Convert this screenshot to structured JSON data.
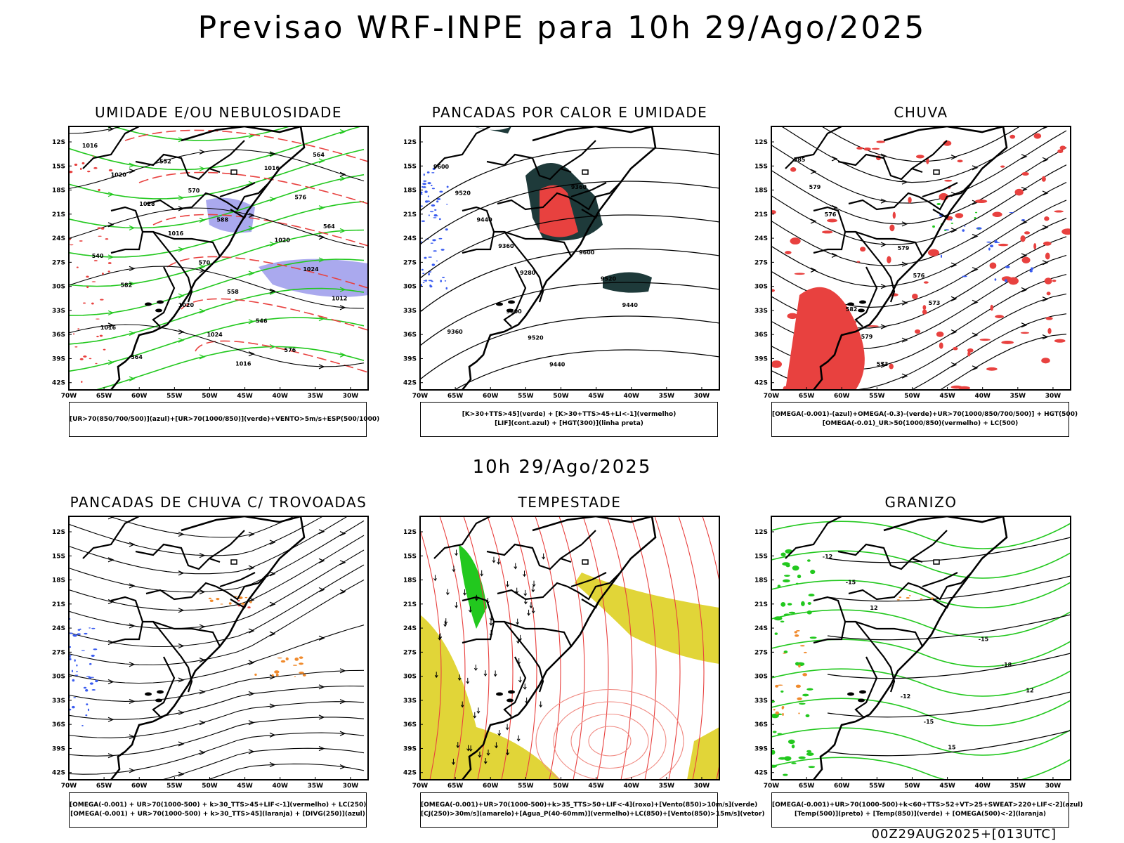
{
  "title": "Previsao WRF-INPE  para 10h 29/Ago/2025",
  "subtitle": "10h 29/Ago/2025",
  "footer": "00Z29AUG2025+[013UTC]",
  "axis": {
    "lat_labels": [
      "12S",
      "15S",
      "18S",
      "21S",
      "24S",
      "27S",
      "30S",
      "33S",
      "36S",
      "39S",
      "42S"
    ],
    "lon_labels": [
      "70W",
      "65W",
      "60W",
      "55W",
      "50W",
      "45W",
      "40W",
      "35W",
      "30W"
    ]
  },
  "colors": {
    "red": "#e8413f",
    "green": "#22c81e",
    "blue": "#3a5cf0",
    "lavender": "#aaa9ee",
    "darkteal": "#1e3a3a",
    "yellow": "#e1d538",
    "orange": "#f08a2c",
    "lightred": "#f08b83"
  },
  "panels": [
    {
      "id": "umidade",
      "title": "UMIDADE E/OU NEBULOSIDADE",
      "legend": [
        "[UR>70(850/700/500)](azul)+[UR>70(1000/850)](verde)+VENTO>5m/s+ESP(500/1000)"
      ],
      "contour_labels": [
        "1016",
        "1020",
        "1020",
        "1020",
        "1024",
        "1024",
        "1028",
        "1016",
        "1012",
        "1016",
        "1016",
        "1016",
        "570",
        "576",
        "564",
        "558",
        "564",
        "552",
        "546",
        "540",
        "570",
        "576",
        "582",
        "588",
        "564"
      ]
    },
    {
      "id": "pancadas",
      "title": "PANCADAS POR CALOR E UMIDADE",
      "legend": [
        "[K>30+TTS>45](verde) + [K>30+TTS>45+LI<-1](vermelho)",
        "[LIF](cont.azul) + [HGT(300)](linha preta)"
      ],
      "contour_labels": [
        "9600",
        "9600",
        "9600",
        "9520",
        "9520",
        "9520",
        "9440",
        "9440",
        "9440",
        "9360",
        "9360",
        "9360",
        "9280"
      ]
    },
    {
      "id": "chuva",
      "title": "CHUVA",
      "legend": [
        "[OMEGA(-0.001)-(azul)+OMEGA(-0.3)-(verde)+UR>70(1000/850/700/500)] + HGT(500)",
        "[OMEGA(-0.01)_UR>50(1000/850)(vermelho) + LC(500)"
      ],
      "contour_labels": [
        "585",
        "582",
        "579",
        "579",
        "579",
        "576",
        "576",
        "573",
        "573"
      ]
    },
    {
      "id": "trovoadas",
      "title": "PANCADAS DE CHUVA C/ TROVOADAS",
      "legend": [
        "[OMEGA(-0.001) + UR>70(1000-500) + k>30_TTS>45+LIF<-1](vermelho) + LC(250)",
        "[OMEGA(-0.001) + UR>70(1000-500) + k>30_TTS>45](laranja) + [DIVG(250)](azul)"
      ],
      "contour_labels": []
    },
    {
      "id": "tempestade",
      "title": "TEMPESTADE",
      "legend": [
        "[OMEGA(-0.001)+UR>70(1000-500)+k>35_TTS>50+LIF<-4](roxo)+[Vento(850)>10m/s](verde)",
        "[CJ(250)>30m/s](amarelo)+[Agua_P(40-60mm)](vermelho)+LC(850)+[Vento(850)>15m/s](vetor)"
      ],
      "contour_labels": []
    },
    {
      "id": "granizo",
      "title": "GRANIZO",
      "legend": [
        "[OMEGA(-0.001)+UR>70(1000-500)+k<60+TTS>52+VT>25+SWEAT>220+LIF<-2](azul)",
        "[Temp(500)](preto) + [Temp(850)](verde) + [OMEGA(500)<-2](laranja)"
      ],
      "contour_labels": [
        "-12",
        "-12",
        "-15",
        "-15",
        "-15",
        "-18",
        "12",
        "15",
        "12"
      ]
    }
  ]
}
